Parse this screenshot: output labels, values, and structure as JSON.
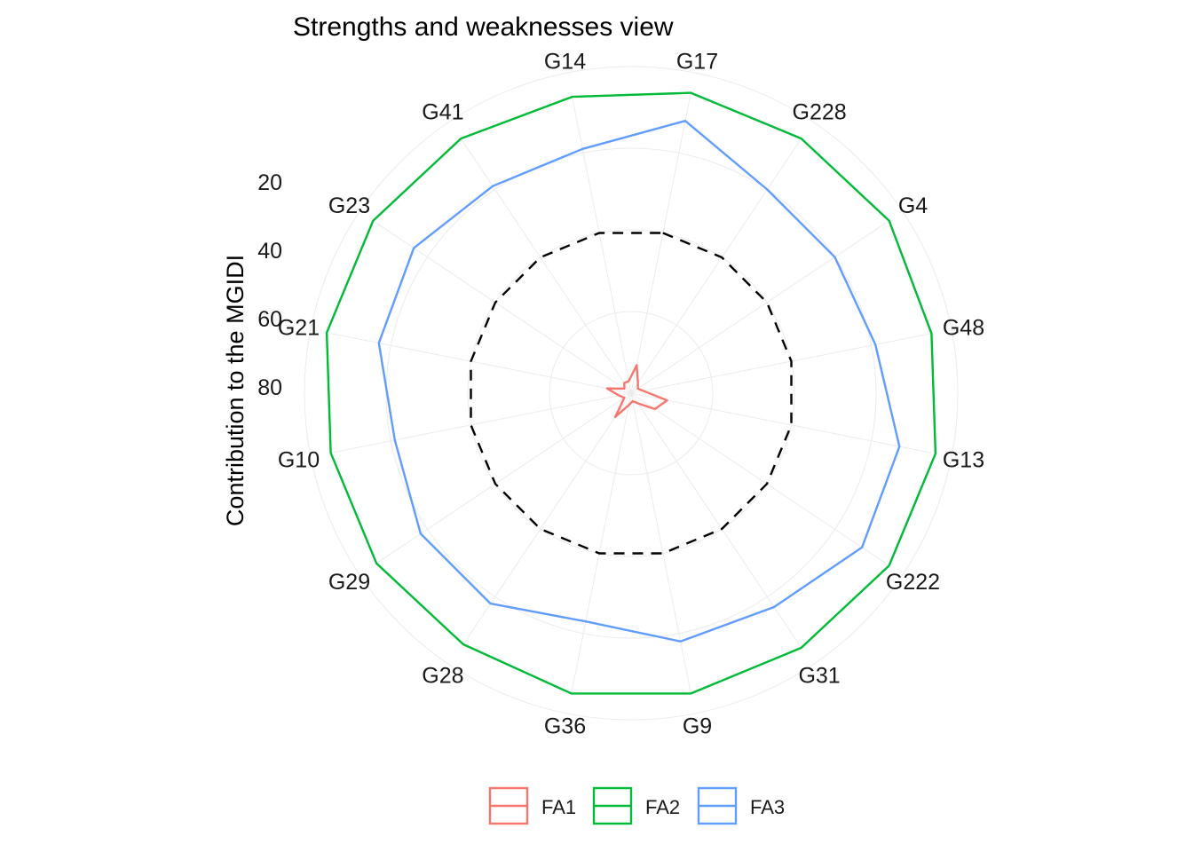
{
  "chart_data": {
    "type": "radar",
    "title": "Strengths and weaknesses view",
    "ylabel": "Contribution to the MGIDI",
    "categories": [
      "G17",
      "G228",
      "G4",
      "G48",
      "G13",
      "G222",
      "G31",
      "G9",
      "G36",
      "G28",
      "G29",
      "G10",
      "G21",
      "G23",
      "G41",
      "G14"
    ],
    "radial_ticks": [
      "20",
      "40",
      "60",
      "80"
    ],
    "rlim": [
      0,
      100
    ],
    "series": [
      {
        "name": "FA1",
        "color": "#F8766D",
        "linetype": "solid",
        "values": [
          7,
          3,
          2,
          3,
          9,
          7,
          3,
          2,
          3,
          7,
          2,
          3,
          6,
          2,
          3,
          3
        ]
      },
      {
        "name": "FA2",
        "color": "#00BA38",
        "linetype": "solid",
        "values": [
          75,
          75,
          76,
          75,
          76,
          76,
          75,
          75,
          75,
          74,
          75,
          75,
          76,
          76,
          75,
          74
        ]
      },
      {
        "name": "FA3",
        "color": "#619CFF",
        "linetype": "solid",
        "values": [
          68,
          60,
          60,
          61,
          67,
          68,
          63,
          62,
          57,
          62,
          62,
          59,
          63,
          64,
          61,
          61
        ]
      },
      {
        "values": [
          40,
          40,
          40,
          40,
          40,
          40,
          40,
          40,
          40,
          40,
          40,
          40,
          40,
          40,
          40,
          40
        ],
        "color": "#000000",
        "linetype": "dashed"
      }
    ],
    "legend_position": "bottom",
    "grid": true
  }
}
